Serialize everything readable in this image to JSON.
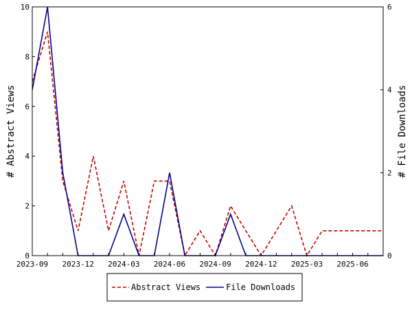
{
  "chart_data": {
    "type": "line",
    "x": [
      "2023-09",
      "2023-10",
      "2023-11",
      "2023-12",
      "2024-01",
      "2024-02",
      "2024-03",
      "2024-04",
      "2024-05",
      "2024-06",
      "2024-07",
      "2024-08",
      "2024-09",
      "2024-10",
      "2024-11",
      "2024-12",
      "2025-01",
      "2025-02",
      "2025-03",
      "2025-04",
      "2025-05",
      "2025-06",
      "2025-07",
      "2025-08"
    ],
    "series": [
      {
        "name": "Abstract Views",
        "axis": "left",
        "color": "#c00000",
        "dash": "dashed",
        "values": [
          7,
          9,
          3,
          1,
          4,
          1,
          3,
          0,
          3,
          3,
          0,
          1,
          0,
          2,
          1,
          0,
          1,
          2,
          0,
          1,
          1,
          1,
          1,
          1
        ]
      },
      {
        "name": "File Downloads",
        "axis": "right",
        "color": "#00008b",
        "dash": "solid",
        "values": [
          4,
          6,
          2,
          0,
          0,
          0,
          1,
          0,
          0,
          2,
          0,
          0,
          0,
          1,
          0,
          0,
          0,
          0,
          0,
          0,
          0,
          0,
          0,
          0
        ]
      }
    ],
    "x_tick_labels": [
      "2023-09",
      "2023-12",
      "2024-03",
      "2024-06",
      "2024-09",
      "2024-12",
      "2025-03",
      "2025-06"
    ],
    "y_left": {
      "label": "# Abstract Views",
      "range": [
        0,
        10
      ],
      "ticks": [
        0,
        2,
        4,
        6,
        8,
        10
      ]
    },
    "y_right": {
      "label": "# File Downloads",
      "range": [
        0,
        6
      ],
      "ticks": [
        0,
        2,
        4,
        6
      ]
    },
    "legend": {
      "position": "bottom-center",
      "entries": [
        "Abstract Views",
        "File Downloads"
      ]
    },
    "grid": false
  }
}
